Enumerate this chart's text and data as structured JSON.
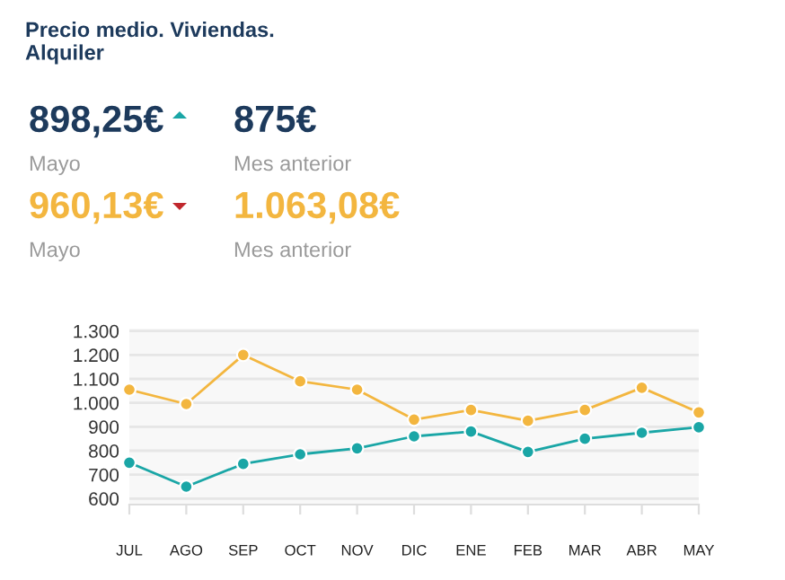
{
  "chart_data": {
    "type": "line",
    "title": "Precio medio. Viviendas.\nAlquiler",
    "annotations": [
      "898,25€",
      "Mayo",
      "875€",
      "Mes anterior",
      "960,13€",
      "Mayo",
      "1.063,08€",
      "Mes anterior"
    ],
    "categories": [
      "JUL",
      "AGO",
      "SEP",
      "OCT",
      "NOV",
      "DIC",
      "ENE",
      "FEB",
      "MAR",
      "ABR",
      "MAY"
    ],
    "series": [
      {
        "color": "#1aa6a6",
        "values": [
          750,
          650,
          745,
          785,
          810,
          860,
          880,
          795,
          850,
          875,
          898
        ]
      },
      {
        "color": "#f3b63f",
        "values": [
          1055,
          995,
          1200,
          1090,
          1055,
          930,
          970,
          925,
          970,
          1063,
          960
        ]
      }
    ],
    "ylim": [
      575,
      1310
    ],
    "yticks": [
      {
        "value": 600,
        "label": "600"
      },
      {
        "value": 700,
        "label": "700"
      },
      {
        "value": 800,
        "label": "800"
      },
      {
        "value": 900,
        "label": "900"
      },
      {
        "value": 1000,
        "label": "1.000"
      },
      {
        "value": 1100,
        "label": "1.100"
      },
      {
        "value": 1200,
        "label": "1.200"
      },
      {
        "value": 1300,
        "label": "1.300"
      }
    ],
    "grid": "y",
    "marker": "circle",
    "line_style": "solid",
    "legend": false
  }
}
